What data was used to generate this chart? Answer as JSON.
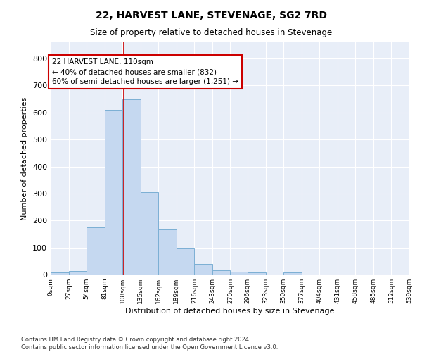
{
  "title": "22, HARVEST LANE, STEVENAGE, SG2 7RD",
  "subtitle": "Size of property relative to detached houses in Stevenage",
  "xlabel": "Distribution of detached houses by size in Stevenage",
  "ylabel": "Number of detached properties",
  "bar_color": "#c5d8f0",
  "bar_edge_color": "#7bafd4",
  "background_color": "#e8eef8",
  "fig_background_color": "#ffffff",
  "grid_color": "#ffffff",
  "marker_value": 110,
  "marker_color": "#cc0000",
  "annotation_text": "22 HARVEST LANE: 110sqm\n← 40% of detached houses are smaller (832)\n60% of semi-detached houses are larger (1,251) →",
  "bin_edges": [
    0,
    27,
    54,
    81,
    108,
    135,
    162,
    189,
    216,
    243,
    270,
    296,
    323,
    350,
    377,
    404,
    431,
    458,
    485,
    512,
    539
  ],
  "bar_heights": [
    8,
    13,
    175,
    610,
    650,
    305,
    170,
    98,
    40,
    15,
    10,
    8,
    0,
    8,
    0,
    0,
    0,
    0,
    0,
    0
  ],
  "ylim": [
    0,
    860
  ],
  "yticks": [
    0,
    100,
    200,
    300,
    400,
    500,
    600,
    700,
    800
  ],
  "footnote": "Contains HM Land Registry data © Crown copyright and database right 2024.\nContains public sector information licensed under the Open Government Licence v3.0.",
  "tick_labels": [
    "0sqm",
    "27sqm",
    "54sqm",
    "81sqm",
    "108sqm",
    "135sqm",
    "162sqm",
    "189sqm",
    "216sqm",
    "243sqm",
    "270sqm",
    "296sqm",
    "323sqm",
    "350sqm",
    "377sqm",
    "404sqm",
    "431sqm",
    "458sqm",
    "485sqm",
    "512sqm",
    "539sqm"
  ]
}
